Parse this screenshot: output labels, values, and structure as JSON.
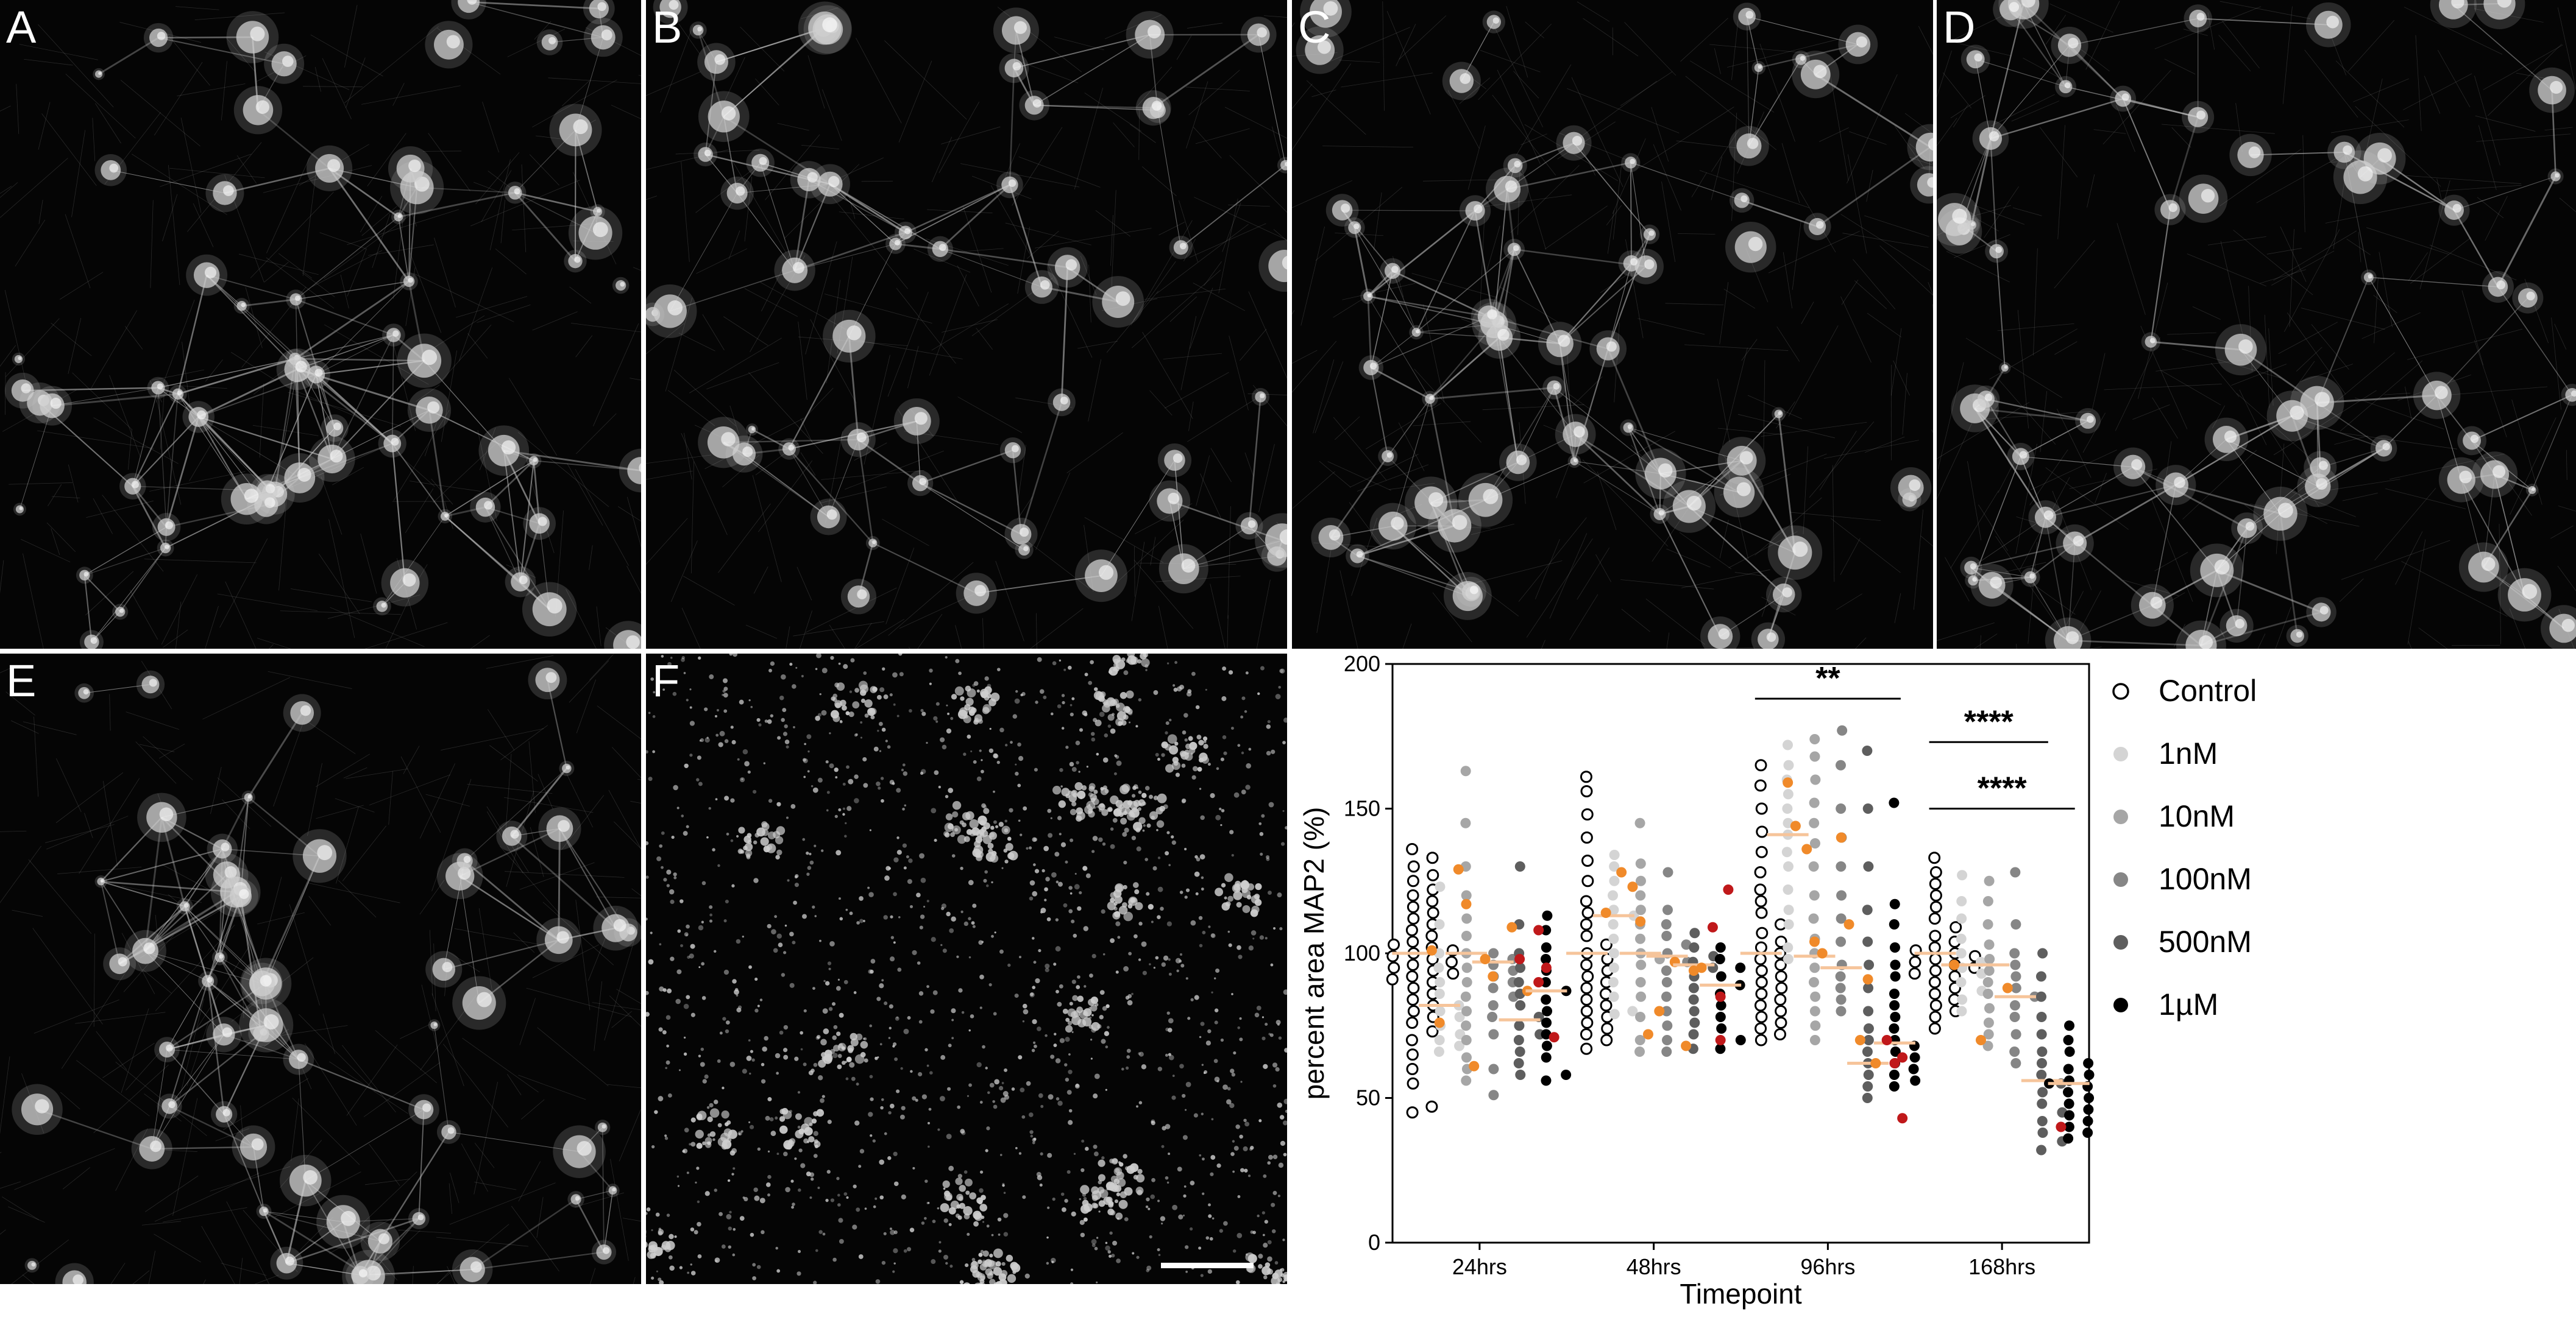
{
  "figure": {
    "panels": [
      {
        "label": "A",
        "kind": "network"
      },
      {
        "label": "B",
        "kind": "network"
      },
      {
        "label": "C",
        "kind": "network"
      },
      {
        "label": "D",
        "kind": "network"
      },
      {
        "label": "E",
        "kind": "network"
      },
      {
        "label": "F",
        "kind": "degenerated"
      }
    ],
    "colors": {
      "panel_bg": "#050505",
      "signal": "#cfcfcf",
      "control": "#ffffff",
      "1nM": "#d4d4d4",
      "10nM": "#a6a6a6",
      "100nM": "#868686",
      "500nM": "#5e5e5e",
      "1uM": "#000000",
      "highlight_orange": "#f08a2a",
      "highlight_red": "#c0181a",
      "median_line": "#f6c49a"
    }
  },
  "chart_data": {
    "type": "scatter",
    "xlabel": "Timepoint",
    "ylabel": "percent area MAP2 (%)",
    "categories": [
      "24hrs",
      "48hrs",
      "96hrs",
      "168hrs"
    ],
    "ylim": [
      0,
      200
    ],
    "yticks": [
      0,
      50,
      100,
      150,
      200
    ],
    "grid": false,
    "legend_position": "right",
    "series": [
      {
        "name": "Control",
        "color": "#ffffff",
        "stroke": "#000000",
        "medians": [
          100,
          100,
          100,
          100
        ],
        "values": [
          [
            136,
            133,
            130,
            127,
            125,
            122,
            120,
            118,
            116,
            114,
            112,
            110,
            108,
            106,
            104,
            103,
            102,
            101,
            100,
            99,
            98,
            97,
            96,
            95,
            94,
            93,
            92,
            91,
            90,
            88,
            86,
            84,
            82,
            80,
            78,
            76,
            73,
            70,
            65,
            60,
            55,
            47,
            45
          ],
          [
            161,
            156,
            148,
            140,
            132,
            125,
            118,
            114,
            110,
            106,
            103,
            100,
            98,
            96,
            94,
            92,
            90,
            88,
            86,
            84,
            82,
            80,
            78,
            76,
            74,
            72,
            70,
            67
          ],
          [
            165,
            158,
            150,
            142,
            135,
            128,
            122,
            118,
            114,
            110,
            107,
            104,
            102,
            100,
            98,
            96,
            94,
            92,
            90,
            88,
            86,
            84,
            82,
            80,
            78,
            76,
            74,
            72,
            70
          ],
          [
            133,
            128,
            124,
            120,
            116,
            112,
            109,
            106,
            104,
            102,
            101,
            100,
            99,
            98,
            97,
            96,
            95,
            94,
            93,
            92,
            90,
            88,
            86,
            84,
            82,
            80,
            78,
            74
          ]
        ],
        "highlights": []
      },
      {
        "name": "1nM",
        "color": "#d4d4d4",
        "medians": [
          82,
          113,
          141,
          96
        ],
        "values": [
          [
            123,
            110,
            100,
            95,
            90,
            86,
            82,
            80,
            78,
            75,
            72,
            70,
            68,
            66
          ],
          [
            134,
            130,
            125,
            120,
            115,
            113,
            110,
            105,
            100,
            95,
            90,
            85,
            80,
            79
          ],
          [
            172,
            165,
            160,
            155,
            150,
            145,
            141,
            135,
            130,
            122,
            115,
            110,
            102,
            98
          ],
          [
            127,
            118,
            112,
            105,
            100,
            97,
            95,
            93,
            90,
            87,
            84,
            80
          ]
        ],
        "highlights": [
          {
            "v": 101,
            "c": "#f08a2a"
          },
          {
            "v": 76,
            "c": "#f08a2a"
          },
          {
            "v": 128,
            "c": "#f08a2a"
          },
          {
            "v": 114,
            "c": "#f08a2a"
          },
          {
            "v": 159,
            "c": "#f08a2a"
          },
          {
            "v": 144,
            "c": "#f08a2a"
          },
          {
            "v": 96,
            "c": "#f08a2a"
          }
        ]
      },
      {
        "name": "10nM",
        "color": "#a6a6a6",
        "medians": [
          100,
          100,
          99,
          96
        ],
        "values": [
          [
            163,
            145,
            130,
            120,
            112,
            106,
            100,
            95,
            90,
            85,
            80,
            75,
            70,
            64,
            60,
            56
          ],
          [
            145,
            131,
            125,
            120,
            115,
            110,
            105,
            100,
            98,
            96,
            90,
            85,
            78,
            70,
            66
          ],
          [
            174,
            168,
            160,
            152,
            145,
            138,
            130,
            120,
            112,
            105,
            100,
            95,
            90,
            85,
            80,
            75,
            70
          ],
          [
            125,
            118,
            110,
            103,
            98,
            94,
            90,
            86,
            81,
            76,
            72,
            68
          ]
        ],
        "highlights": [
          {
            "v": 129,
            "c": "#f08a2a"
          },
          {
            "v": 117,
            "c": "#f08a2a"
          },
          {
            "v": 61,
            "c": "#f08a2a"
          },
          {
            "v": 123,
            "c": "#f08a2a"
          },
          {
            "v": 111,
            "c": "#f08a2a"
          },
          {
            "v": 72,
            "c": "#f08a2a"
          },
          {
            "v": 136,
            "c": "#f08a2a"
          },
          {
            "v": 104,
            "c": "#f08a2a"
          },
          {
            "v": 100,
            "c": "#f08a2a"
          },
          {
            "v": 70,
            "c": "#f08a2a"
          }
        ]
      },
      {
        "name": "100nM",
        "color": "#868686",
        "medians": [
          97,
          99,
          95,
          85
        ],
        "values": [
          [
            100,
            98,
            96,
            94,
            92,
            90,
            88,
            85,
            82,
            78,
            72,
            60,
            51
          ],
          [
            128,
            115,
            110,
            106,
            103,
            100,
            97,
            94,
            90,
            85,
            80,
            75,
            70,
            66
          ],
          [
            177,
            165,
            150,
            140,
            130,
            120,
            112,
            104,
            96,
            92,
            88,
            84,
            80
          ],
          [
            128,
            110,
            100,
            96,
            92,
            88,
            85,
            82,
            78,
            72,
            66,
            62
          ]
        ],
        "highlights": [
          {
            "v": 98,
            "c": "#f08a2a"
          },
          {
            "v": 92,
            "c": "#f08a2a"
          },
          {
            "v": 97,
            "c": "#f08a2a"
          },
          {
            "v": 80,
            "c": "#f08a2a"
          },
          {
            "v": 140,
            "c": "#f08a2a"
          },
          {
            "v": 110,
            "c": "#f08a2a"
          },
          {
            "v": 88,
            "c": "#f08a2a"
          }
        ]
      },
      {
        "name": "500nM",
        "color": "#5e5e5e",
        "medians": [
          77,
          96,
          62,
          56
        ],
        "values": [
          [
            130,
            110,
            100,
            95,
            90,
            86,
            82,
            78,
            75,
            72,
            70,
            66,
            62,
            58
          ],
          [
            107,
            102,
            99,
            97,
            95,
            92,
            88,
            84,
            80,
            76,
            72,
            67
          ],
          [
            170,
            150,
            130,
            115,
            104,
            96,
            88,
            80,
            74,
            70,
            66,
            62,
            58,
            54,
            50
          ],
          [
            100,
            92,
            85,
            78,
            72,
            66,
            62,
            58,
            55,
            52,
            48,
            45,
            42,
            38,
            35,
            32
          ]
        ],
        "highlights": [
          {
            "v": 109,
            "c": "#f08a2a"
          },
          {
            "v": 98,
            "c": "#c0181a"
          },
          {
            "v": 87,
            "c": "#f08a2a"
          },
          {
            "v": 68,
            "c": "#f08a2a"
          },
          {
            "v": 94,
            "c": "#f08a2a"
          },
          {
            "v": 95,
            "c": "#f08a2a"
          },
          {
            "v": 70,
            "c": "#f08a2a"
          },
          {
            "v": 91,
            "c": "#f08a2a"
          },
          {
            "v": 62,
            "c": "#f08a2a"
          }
        ]
      },
      {
        "name": "1µM",
        "color": "#000000",
        "medians": [
          87,
          89,
          69,
          55
        ],
        "values": [
          [
            113,
            108,
            102,
            98,
            94,
            90,
            87,
            84,
            80,
            76,
            72,
            68,
            64,
            58,
            56
          ],
          [
            102,
            98,
            95,
            92,
            89,
            86,
            82,
            78,
            74,
            70,
            67
          ],
          [
            152,
            117,
            110,
            102,
            96,
            92,
            86,
            82,
            78,
            74,
            70,
            68,
            66,
            64,
            62,
            60,
            58,
            56,
            54
          ],
          [
            75,
            70,
            66,
            62,
            60,
            58,
            56,
            55,
            54,
            52,
            50,
            48,
            46,
            44,
            42,
            40,
            38,
            36
          ]
        ],
        "highlights": [
          {
            "v": 108,
            "c": "#c0181a"
          },
          {
            "v": 95,
            "c": "#c0181a"
          },
          {
            "v": 71,
            "c": "#c0181a"
          },
          {
            "v": 90,
            "c": "#c0181a"
          },
          {
            "v": 70,
            "c": "#c0181a"
          },
          {
            "v": 122,
            "c": "#c0181a"
          },
          {
            "v": 109,
            "c": "#c0181a"
          },
          {
            "v": 85,
            "c": "#c0181a"
          },
          {
            "v": 64,
            "c": "#c0181a"
          },
          {
            "v": 70,
            "c": "#c0181a"
          },
          {
            "v": 62,
            "c": "#c0181a"
          },
          {
            "v": 43,
            "c": "#c0181a"
          },
          {
            "v": 40,
            "c": "#c0181a"
          }
        ]
      }
    ],
    "significance": [
      {
        "label": "*",
        "timepoint": 2,
        "from": 0,
        "to": 1,
        "y": 207
      },
      {
        "label": "**",
        "timepoint": 2,
        "from": 0,
        "to": 5,
        "y": 188
      },
      {
        "label": "****",
        "timepoint": 3,
        "from": 0,
        "to": 4,
        "y": 173
      },
      {
        "label": "****",
        "timepoint": 3,
        "from": 0,
        "to": 5,
        "y": 150
      }
    ]
  }
}
